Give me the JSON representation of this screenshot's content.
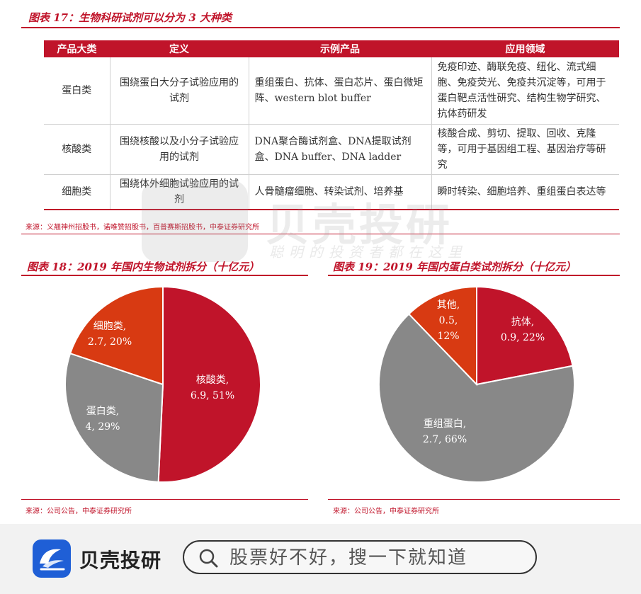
{
  "figure17": {
    "title": "图表 17：生物科研试剂可以分为 3 大种类",
    "headers": [
      "产品大类",
      "定义",
      "示例产品",
      "应用领域"
    ],
    "rows": [
      {
        "category": "蛋白类",
        "definition": "围绕蛋白大分子试验应用的试剂",
        "examples": "重组蛋白、抗体、蛋白芯片、蛋白微矩阵、western blot buffer",
        "applications": "免疫印迹、酶联免疫、纽化、流式细胞、免疫荧光、免疫共沉淀等，可用于蛋白靶点活性研究、结构生物学研究、抗体药研发"
      },
      {
        "category": "核酸类",
        "definition": "围绕核酸以及小分子试验应用的试剂",
        "examples": "DNA聚合酶试剂盒、DNA提取试剂盒、DNA buffer、DNA ladder",
        "applications": "核酸合成、剪切、提取、回收、克隆等，可用于基因组工程、基因治疗等研究"
      },
      {
        "category": "细胞类",
        "definition": "围绕体外细胞试验应用的试剂",
        "examples": "人骨髓瘤细胞、转染试剂、培养基",
        "applications": "瞬时转染、细胞培养、重组蛋白表达等"
      }
    ],
    "source": "来源：义翘神州招股书，诺唯赞招股书，百普赛斯招股书，中泰证券研究所"
  },
  "figure18": {
    "title": "图表 18：2019 年国内生物试剂拆分（十亿元）",
    "source": "来源：公司公告，中泰证券研究所"
  },
  "figure19": {
    "title": "图表 19：2019 年国内蛋白类试剂拆分（十亿元）",
    "source": "来源：公司公告，中泰证券研究所"
  },
  "chart_data": [
    {
      "type": "pie",
      "title": "2019 年国内生物试剂拆分（十亿元）",
      "slices": [
        {
          "name": "核酸类",
          "value": 6.9,
          "percent": 51,
          "label_line1": "核酸类,",
          "label_line2": "6.9, 51%",
          "color": "#c0142a"
        },
        {
          "name": "蛋白类",
          "value": 4,
          "percent": 29,
          "label_line1": "蛋白类,",
          "label_line2": "4, 29%",
          "color": "#888888"
        },
        {
          "name": "细胞类",
          "value": 2.7,
          "percent": 20,
          "label_line1": "细胞类,",
          "label_line2": "2.7, 20%",
          "color": "#d83a12"
        }
      ]
    },
    {
      "type": "pie",
      "title": "2019 年国内蛋白类试剂拆分（十亿元）",
      "slices": [
        {
          "name": "抗体",
          "value": 0.9,
          "percent": 22,
          "label_line1": "抗体,",
          "label_line2": "0.9, 22%",
          "color": "#c0142a"
        },
        {
          "name": "重组蛋白",
          "value": 2.7,
          "percent": 66,
          "label_line1": "重组蛋白,",
          "label_line2": "2.7, 66%",
          "color": "#888888"
        },
        {
          "name": "其他",
          "value": 0.5,
          "percent": 12,
          "label_line1": "其他,",
          "label_line2": "0.5,",
          "label_line3": "12%",
          "color": "#d83a12"
        }
      ]
    }
  ],
  "watermark": {
    "brand": "贝壳投研",
    "tagline": "聪明的投资者都在这里"
  },
  "footer": {
    "brand": "贝壳投研",
    "search_placeholder": "股票好不好，搜一下就知道",
    "logo_color": "#1f5fd6"
  }
}
